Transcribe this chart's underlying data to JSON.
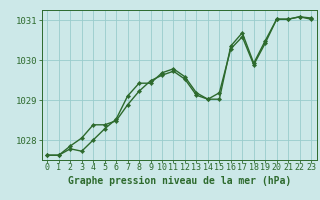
{
  "xlabel": "Graphe pression niveau de la mer (hPa)",
  "line1_x": [
    0,
    1,
    2,
    3,
    4,
    5,
    6,
    7,
    8,
    9,
    10,
    11,
    12,
    13,
    14,
    15,
    16,
    17,
    18,
    19,
    20,
    21,
    22,
    23
  ],
  "line1_y": [
    1027.62,
    1027.62,
    1027.78,
    1027.72,
    1028.0,
    1028.28,
    1028.52,
    1029.1,
    1029.42,
    1029.42,
    1029.68,
    1029.78,
    1029.58,
    1029.18,
    1029.02,
    1029.02,
    1030.35,
    1030.68,
    1029.92,
    1030.48,
    1031.02,
    1031.02,
    1031.08,
    1031.05
  ],
  "line2_x": [
    0,
    1,
    2,
    3,
    4,
    5,
    6,
    7,
    8,
    9,
    10,
    11,
    12,
    13,
    14,
    15,
    16,
    17,
    18,
    19,
    20,
    21,
    22,
    23
  ],
  "line2_y": [
    1027.62,
    1027.62,
    1027.85,
    1028.05,
    1028.38,
    1028.38,
    1028.48,
    1028.88,
    1029.22,
    1029.48,
    1029.62,
    1029.72,
    1029.52,
    1029.12,
    1029.02,
    1029.18,
    1030.28,
    1030.58,
    1029.88,
    1030.42,
    1031.02,
    1031.02,
    1031.08,
    1031.02
  ],
  "line_color": "#2d6a2d",
  "marker": "D",
  "marker_size": 2.2,
  "bg_color": "#cce8e8",
  "grid_color": "#99cccc",
  "ylim": [
    1027.5,
    1031.25
  ],
  "yticks": [
    1028,
    1029,
    1030,
    1031
  ],
  "xticks": [
    0,
    1,
    2,
    3,
    4,
    5,
    6,
    7,
    8,
    9,
    10,
    11,
    12,
    13,
    14,
    15,
    16,
    17,
    18,
    19,
    20,
    21,
    22,
    23
  ],
  "xlabel_fontsize": 7.0,
  "tick_fontsize": 6.0,
  "line_width": 1.0
}
